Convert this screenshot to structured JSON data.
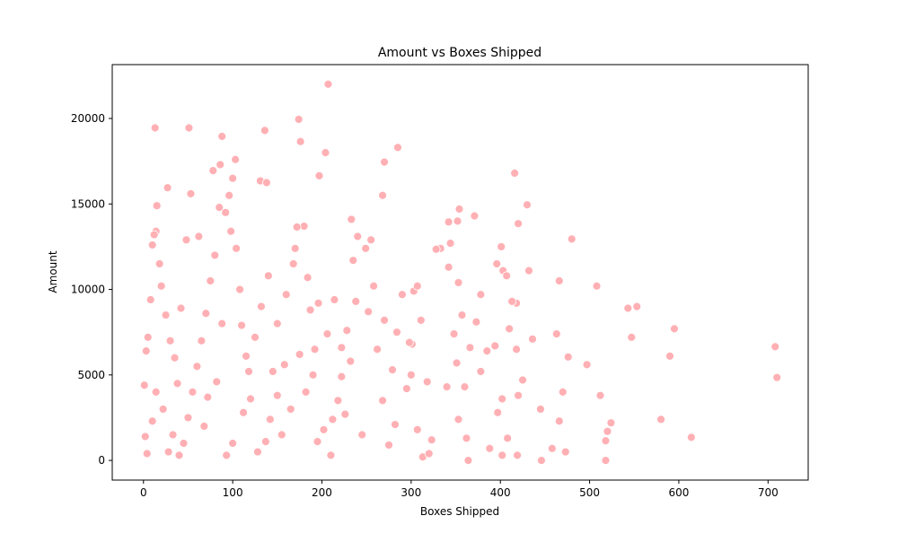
{
  "chart_data": {
    "type": "scatter",
    "title": "Amount vs Boxes Shipped",
    "x_label": "Boxes Shipped",
    "y_label": "Amount",
    "color": "#ffb0b4",
    "x": [
      207,
      174,
      13,
      51,
      136,
      88,
      176,
      285,
      204,
      103,
      86,
      270,
      78,
      416,
      197,
      100,
      131,
      138,
      27,
      53,
      268,
      14,
      430,
      10,
      708,
      710,
      614,
      580,
      595,
      590,
      553,
      543,
      547,
      508,
      480,
      466,
      463,
      497,
      476,
      512,
      520,
      518,
      518,
      524,
      470,
      466,
      473,
      458,
      445,
      446,
      420,
      418,
      413,
      401,
      403,
      396,
      407,
      432,
      436,
      410,
      418,
      394,
      385,
      378,
      402,
      420,
      425,
      408,
      397,
      388,
      402,
      419,
      371,
      354,
      352,
      342,
      344,
      333,
      328,
      342,
      353,
      373,
      378,
      357,
      348,
      366,
      360,
      351,
      353,
      362,
      364,
      340,
      323,
      307,
      313,
      320,
      300,
      303,
      307,
      311,
      301,
      290,
      284,
      279,
      270,
      258,
      249,
      255,
      240,
      233,
      235,
      238,
      228,
      222,
      222,
      218,
      212,
      210,
      202,
      195,
      190,
      192,
      187,
      184,
      180,
      172,
      170,
      168,
      160,
      150,
      158,
      150,
      142,
      137,
      128,
      120,
      115,
      110,
      108,
      104,
      98,
      96,
      92,
      85,
      80,
      75,
      70,
      65,
      60,
      55,
      50,
      45,
      40,
      35,
      30,
      25,
      20,
      18,
      15,
      12,
      8,
      5,
      3,
      1,
      2,
      4,
      10,
      14,
      22,
      28,
      33,
      38,
      42,
      48,
      62,
      68,
      72,
      82,
      88,
      93,
      100,
      112,
      118,
      125,
      132,
      140,
      145,
      155,
      165,
      175,
      182,
      196,
      206,
      214,
      226,
      232,
      245,
      252,
      262,
      268,
      275,
      282,
      295,
      298,
      318
    ],
    "values": [
      22000,
      19950,
      19450,
      19450,
      19300,
      18950,
      18650,
      18300,
      18000,
      17600,
      17300,
      17450,
      16950,
      16800,
      16650,
      16500,
      16350,
      16250,
      15950,
      15600,
      15500,
      13400,
      14950,
      12600,
      6650,
      4850,
      1350,
      2400,
      7700,
      6100,
      9000,
      8900,
      7200,
      10200,
      12950,
      10500,
      7400,
      5600,
      6050,
      3800,
      1700,
      1150,
      0,
      2200,
      4000,
      2300,
      500,
      700,
      3000,
      0,
      13850,
      9200,
      9300,
      12500,
      11100,
      11500,
      10800,
      11100,
      7100,
      7700,
      6500,
      6700,
      6400,
      5200,
      3600,
      3800,
      4700,
      1300,
      2800,
      700,
      300,
      300,
      14300,
      14700,
      14000,
      13950,
      12700,
      12400,
      12350,
      11300,
      10400,
      8100,
      9700,
      8500,
      7400,
      6600,
      4300,
      5700,
      2400,
      1300,
      0,
      4300,
      1200,
      1800,
      200,
      400,
      5000,
      9900,
      10200,
      8200,
      6800,
      9700,
      7500,
      5300,
      8200,
      10200,
      12400,
      12900,
      13100,
      14100,
      11700,
      9300,
      7600,
      6600,
      4900,
      3500,
      2400,
      300,
      1800,
      1100,
      5000,
      6500,
      8800,
      10700,
      13700,
      13650,
      12400,
      11500,
      9700,
      8000,
      5600,
      3800,
      2400,
      1100,
      500,
      3600,
      6100,
      7900,
      10000,
      12400,
      13400,
      15500,
      14500,
      14800,
      12000,
      10500,
      8600,
      7000,
      5500,
      4000,
      2500,
      1000,
      300,
      6000,
      7000,
      8500,
      10200,
      11500,
      14900,
      13200,
      9400,
      7200,
      6400,
      4400,
      1400,
      400,
      2300,
      4000,
      3000,
      500,
      1500,
      4500,
      8900,
      12900,
      13100,
      2000,
      3700,
      4600,
      8000,
      300,
      1000,
      2800,
      5200,
      7200,
      9000,
      10800,
      5200,
      1500,
      3000,
      6200,
      4000,
      9200,
      7400,
      9400,
      2700,
      5800,
      1500,
      8700,
      6500,
      3500,
      900,
      2100,
      4200,
      6900,
      4600
    ],
    "xlim": [
      -35,
      745
    ],
    "ylim": [
      -1150,
      23150
    ],
    "xticks": [
      0,
      100,
      200,
      300,
      400,
      500,
      600,
      700
    ],
    "yticks": [
      0,
      5000,
      10000,
      15000,
      20000
    ]
  }
}
